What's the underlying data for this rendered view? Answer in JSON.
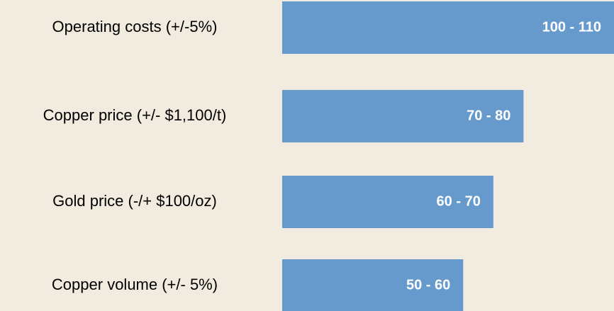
{
  "chart_data": {
    "type": "barh",
    "categories": [
      "Operating costs (+/-5%)",
      "Copper price (+/- $1,100/t)",
      "Gold price (-/+ $100/oz)",
      "Copper volume (+/- 5%)"
    ],
    "values": [
      110,
      80,
      70,
      60
    ],
    "value_labels": [
      "100 - 110",
      "70 - 80",
      "60 - 70",
      "50 - 60"
    ],
    "color": "#6699cc",
    "label_color": "#ffffff",
    "background": "#f2ebdf"
  }
}
